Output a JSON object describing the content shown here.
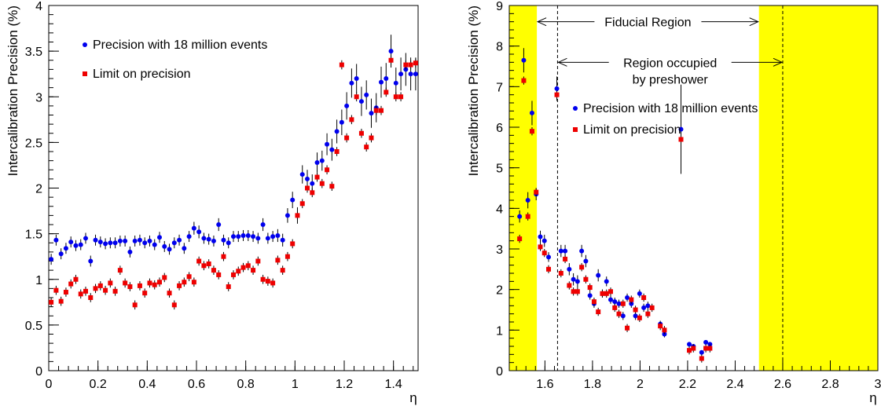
{
  "colors": {
    "precision": "#0000ee",
    "limit": "#ee0000",
    "band": "#ffff00"
  },
  "chart_data": [
    {
      "type": "scatter",
      "xlabel": "η",
      "ylabel": "Intercalibration Precision (%)",
      "xlim": [
        0,
        1.5
      ],
      "ylim": [
        0,
        4
      ],
      "xticks": [
        0,
        0.2,
        0.4,
        0.6,
        0.8,
        1,
        1.2,
        1.4
      ],
      "xtick_labels": [
        "0",
        "0.2",
        "0.4",
        "0.6",
        "0.8",
        "1",
        "1.2",
        "1.4"
      ],
      "yticks": [
        0,
        0.5,
        1,
        1.5,
        2,
        2.5,
        3,
        3.5,
        4
      ],
      "ytick_labels": [
        "0",
        "0.5",
        "1",
        "1.5",
        "2",
        "2.5",
        "3",
        "3.5",
        "4"
      ],
      "legend": [
        "Precision with 18 million events",
        "Limit on precision"
      ],
      "legend_position": "top-left",
      "x": [
        0.01,
        0.03,
        0.05,
        0.07,
        0.09,
        0.11,
        0.13,
        0.15,
        0.17,
        0.19,
        0.21,
        0.23,
        0.25,
        0.27,
        0.29,
        0.31,
        0.33,
        0.35,
        0.37,
        0.39,
        0.41,
        0.43,
        0.45,
        0.47,
        0.49,
        0.51,
        0.53,
        0.55,
        0.57,
        0.59,
        0.61,
        0.63,
        0.65,
        0.67,
        0.69,
        0.71,
        0.73,
        0.75,
        0.77,
        0.79,
        0.81,
        0.83,
        0.85,
        0.87,
        0.89,
        0.91,
        0.93,
        0.95,
        0.97,
        0.99,
        1.01,
        1.03,
        1.05,
        1.07,
        1.09,
        1.11,
        1.13,
        1.15,
        1.17,
        1.19,
        1.21,
        1.23,
        1.25,
        1.27,
        1.29,
        1.31,
        1.33,
        1.35,
        1.37,
        1.39,
        1.41,
        1.43,
        1.45,
        1.47,
        1.49
      ],
      "series": [
        {
          "name": "Precision with 18 million events",
          "values": [
            1.22,
            1.43,
            1.28,
            1.34,
            1.41,
            1.37,
            1.38,
            1.45,
            1.2,
            1.43,
            1.41,
            1.39,
            1.4,
            1.4,
            1.42,
            1.42,
            1.3,
            1.42,
            1.43,
            1.4,
            1.42,
            1.38,
            1.46,
            1.36,
            1.33,
            1.4,
            1.43,
            1.34,
            1.47,
            1.56,
            1.52,
            1.45,
            1.44,
            1.42,
            1.6,
            1.43,
            1.4,
            1.47,
            1.47,
            1.48,
            1.48,
            1.47,
            1.45,
            1.6,
            1.45,
            1.47,
            1.48,
            1.43,
            1.7,
            1.87,
            1.7,
            2.15,
            2.1,
            2.05,
            2.28,
            2.3,
            2.48,
            2.42,
            2.62,
            2.72,
            2.9,
            3.15,
            3.2,
            2.95,
            3.02,
            2.82,
            2.88,
            3.16,
            3.2,
            3.5,
            3.15,
            3.25,
            3.3,
            3.25,
            3.25
          ],
          "errors": [
            0.06,
            0.06,
            0.06,
            0.06,
            0.06,
            0.06,
            0.06,
            0.06,
            0.06,
            0.06,
            0.06,
            0.06,
            0.06,
            0.06,
            0.06,
            0.06,
            0.06,
            0.06,
            0.06,
            0.06,
            0.06,
            0.06,
            0.06,
            0.06,
            0.06,
            0.06,
            0.06,
            0.06,
            0.06,
            0.07,
            0.07,
            0.06,
            0.06,
            0.06,
            0.07,
            0.06,
            0.06,
            0.06,
            0.06,
            0.06,
            0.06,
            0.06,
            0.06,
            0.07,
            0.06,
            0.06,
            0.07,
            0.07,
            0.08,
            0.09,
            0.09,
            0.1,
            0.1,
            0.1,
            0.11,
            0.11,
            0.12,
            0.12,
            0.13,
            0.14,
            0.15,
            0.16,
            0.16,
            0.16,
            0.16,
            0.16,
            0.16,
            0.17,
            0.17,
            0.18,
            0.17,
            0.18,
            0.18,
            0.18,
            0.18
          ]
        },
        {
          "name": "Limit on precision",
          "values": [
            0.75,
            0.88,
            0.76,
            0.86,
            0.95,
            1.0,
            0.84,
            0.87,
            0.8,
            0.9,
            0.93,
            0.88,
            0.96,
            0.87,
            1.1,
            0.96,
            0.92,
            0.72,
            0.93,
            0.85,
            0.96,
            0.94,
            0.97,
            1.02,
            0.85,
            0.72,
            0.93,
            0.97,
            1.03,
            0.97,
            1.2,
            1.15,
            1.17,
            1.1,
            1.05,
            1.25,
            0.92,
            1.05,
            1.09,
            1.13,
            1.15,
            1.1,
            1.2,
            1.0,
            0.98,
            0.96,
            1.21,
            1.1,
            1.25,
            1.39,
            1.7,
            1.83,
            2.0,
            1.95,
            2.12,
            2.05,
            2.2,
            2.02,
            2.4,
            3.35,
            2.55,
            2.75,
            3.0,
            2.6,
            2.45,
            2.55,
            2.85,
            2.85,
            3.05,
            3.4,
            3.0,
            3.0,
            3.35,
            3.35,
            3.37
          ],
          "errors": [
            0.05,
            0.05,
            0.05,
            0.05,
            0.05,
            0.05,
            0.05,
            0.05,
            0.05,
            0.05,
            0.05,
            0.05,
            0.05,
            0.05,
            0.05,
            0.05,
            0.05,
            0.05,
            0.05,
            0.05,
            0.05,
            0.05,
            0.05,
            0.05,
            0.05,
            0.05,
            0.05,
            0.05,
            0.05,
            0.05,
            0.05,
            0.05,
            0.05,
            0.05,
            0.05,
            0.05,
            0.05,
            0.05,
            0.05,
            0.05,
            0.05,
            0.05,
            0.05,
            0.05,
            0.05,
            0.05,
            0.05,
            0.05,
            0.05,
            0.05,
            0.05,
            0.05,
            0.05,
            0.05,
            0.05,
            0.05,
            0.05,
            0.05,
            0.05,
            0.05,
            0.05,
            0.05,
            0.05,
            0.05,
            0.05,
            0.05,
            0.05,
            0.05,
            0.05,
            0.05,
            0.05,
            0.05,
            0.05,
            0.05,
            0.05
          ]
        }
      ]
    },
    {
      "type": "scatter",
      "xlabel": "η",
      "ylabel": "Intercalibration Precision (%)",
      "xlim": [
        1.45,
        3.0
      ],
      "ylim": [
        0,
        9
      ],
      "xticks": [
        1.6,
        1.8,
        2,
        2.2,
        2.4,
        2.6,
        2.8,
        3
      ],
      "xtick_labels": [
        "1.6",
        "1.8",
        "2",
        "2.2",
        "2.4",
        "2.6",
        "2.8",
        "3"
      ],
      "yticks": [
        0,
        1,
        2,
        3,
        4,
        5,
        6,
        7,
        8,
        9
      ],
      "ytick_labels": [
        "0",
        "1",
        "2",
        "3",
        "4",
        "5",
        "6",
        "7",
        "8",
        "9"
      ],
      "legend": [
        "Precision with 18 million events",
        "Limit on precision"
      ],
      "legend_position": "center",
      "shaded_regions": [
        [
          1.45,
          1.566
        ],
        [
          2.5,
          3.0
        ]
      ],
      "vertical_lines": [
        1.653,
        2.6
      ],
      "annotations": [
        {
          "text": "Fiducial Region",
          "from": 1.566,
          "to": 2.5,
          "y": 8.6
        },
        {
          "text": "Region occupied",
          "line2": "by preshower",
          "from": 1.653,
          "to": 2.6,
          "y": 7.6
        }
      ],
      "x": [
        1.4935,
        1.5109,
        1.5283,
        1.5457,
        1.5631,
        1.5805,
        1.5979,
        1.6153,
        1.6327,
        1.6501,
        1.6675,
        1.6849,
        1.7023,
        1.7197,
        1.7371,
        1.7545,
        1.7719,
        1.7893,
        1.8067,
        1.8241,
        1.8415,
        1.8589,
        1.8763,
        1.8937,
        1.9111,
        1.9285,
        1.9459,
        1.9633,
        1.9807,
        1.9981,
        2.0155,
        2.0329,
        2.0503,
        2.0677,
        2.0851,
        2.1025,
        2.1199,
        2.1373,
        2.1547,
        2.1721,
        2.1895,
        2.2069,
        2.2243,
        2.2417,
        2.2591,
        2.2765,
        2.2939,
        2.3113,
        2.3287,
        2.3461,
        2.3635,
        2.3809,
        2.3983,
        2.4157,
        2.4331,
        2.4505,
        2.4679,
        2.4853,
        2.5027,
        2.5201,
        2.5375,
        2.5549,
        2.5723,
        2.5897,
        2.6071,
        2.6245,
        2.6419,
        2.6593,
        2.6767,
        2.6941,
        2.7115,
        2.7289,
        2.7463,
        2.7637,
        2.7811,
        2.7985,
        2.8159,
        2.8333,
        2.8507,
        2.8681,
        2.8855,
        2.9029,
        2.9203,
        2.9377,
        2.9551
      ],
      "series": [
        {
          "name": "Precision with 18 million events",
          "values": [
            3.8,
            7.65,
            4.2,
            6.35,
            4.35,
            3.3,
            3.2,
            2.8,
            null,
            6.95,
            2.95,
            2.95,
            2.5,
            2.25,
            2.2,
            2.95,
            2.7,
            1.85,
            1.65,
            2.35,
            1.9,
            2.2,
            1.75,
            1.7,
            1.65,
            1.35,
            1.8,
            1.65,
            1.35,
            1.9,
            1.55,
            1.6,
            null,
            null,
            1.15,
            0.9,
            null,
            null,
            null,
            5.95,
            null,
            0.65,
            0.6,
            null,
            0.45,
            0.7,
            0.65,
            null,
            null,
            null,
            null,
            null,
            null,
            null,
            null,
            null,
            null,
            null,
            null,
            null,
            null,
            null,
            null,
            null,
            null,
            null,
            null,
            null,
            null,
            null,
            null,
            null,
            null,
            null,
            null,
            null,
            null,
            null,
            null,
            null,
            null,
            null,
            null,
            null,
            null
          ],
          "errors": [
            0.15,
            0.3,
            0.2,
            0.3,
            0.15,
            0.15,
            0.15,
            0.12,
            null,
            0.3,
            0.15,
            0.15,
            0.15,
            0.15,
            0.15,
            0.15,
            0.15,
            0.1,
            0.1,
            0.15,
            0.1,
            0.12,
            0.1,
            0.1,
            0.1,
            0.1,
            0.1,
            0.1,
            0.1,
            0.1,
            0.1,
            0.1,
            null,
            null,
            0.08,
            0.08,
            null,
            null,
            null,
            1.1,
            null,
            0.05,
            0.05,
            null,
            0.05,
            0.05,
            0.05,
            null,
            null,
            null,
            null,
            null,
            null,
            null,
            null,
            null,
            null,
            null,
            null,
            null,
            null,
            null,
            null,
            null,
            null,
            null,
            null,
            null,
            null,
            null,
            null,
            null,
            null,
            null,
            null,
            null,
            null,
            null,
            null,
            null,
            null,
            null,
            null,
            null,
            null
          ]
        },
        {
          "name": "Limit on precision",
          "values": [
            3.25,
            7.15,
            3.8,
            5.9,
            4.4,
            3.05,
            2.9,
            2.5,
            null,
            6.8,
            2.4,
            2.75,
            2.1,
            1.95,
            1.95,
            2.55,
            2.25,
            2.05,
            1.7,
            1.45,
            1.9,
            1.9,
            1.95,
            1.55,
            1.4,
            1.65,
            1.05,
            1.75,
            1.5,
            1.3,
            1.8,
            1.4,
            1.55,
            null,
            1.1,
            1.0,
            null,
            null,
            null,
            5.7,
            null,
            0.5,
            0.55,
            null,
            0.3,
            0.55,
            0.55,
            null,
            null,
            null,
            null,
            null,
            null,
            null,
            null,
            null,
            null,
            null,
            null,
            null,
            null,
            null,
            null,
            null,
            null,
            null,
            null,
            null,
            null,
            null,
            null,
            null,
            null,
            null,
            null,
            null,
            null,
            null,
            null,
            null,
            null,
            null,
            null,
            null,
            null
          ],
          "errors": [
            0.1,
            0.1,
            0.1,
            0.1,
            0.1,
            0.1,
            0.1,
            0.1,
            null,
            0.1,
            0.1,
            0.1,
            0.1,
            0.1,
            0.1,
            0.1,
            0.1,
            0.1,
            0.1,
            0.1,
            0.1,
            0.1,
            0.1,
            0.1,
            0.1,
            0.1,
            0.1,
            0.1,
            0.1,
            0.1,
            0.1,
            0.1,
            0.1,
            null,
            0.1,
            0.1,
            null,
            null,
            null,
            0.1,
            null,
            0.1,
            0.1,
            null,
            0.1,
            0.1,
            0.1,
            null,
            null,
            null,
            null,
            null,
            null,
            null,
            null,
            null,
            null,
            null,
            null,
            null,
            null,
            null,
            null,
            null,
            null,
            null,
            null,
            null,
            null,
            null,
            null,
            null,
            null,
            null,
            null,
            null,
            null,
            null,
            null,
            null,
            null,
            null,
            null,
            null,
            null
          ]
        }
      ]
    }
  ]
}
